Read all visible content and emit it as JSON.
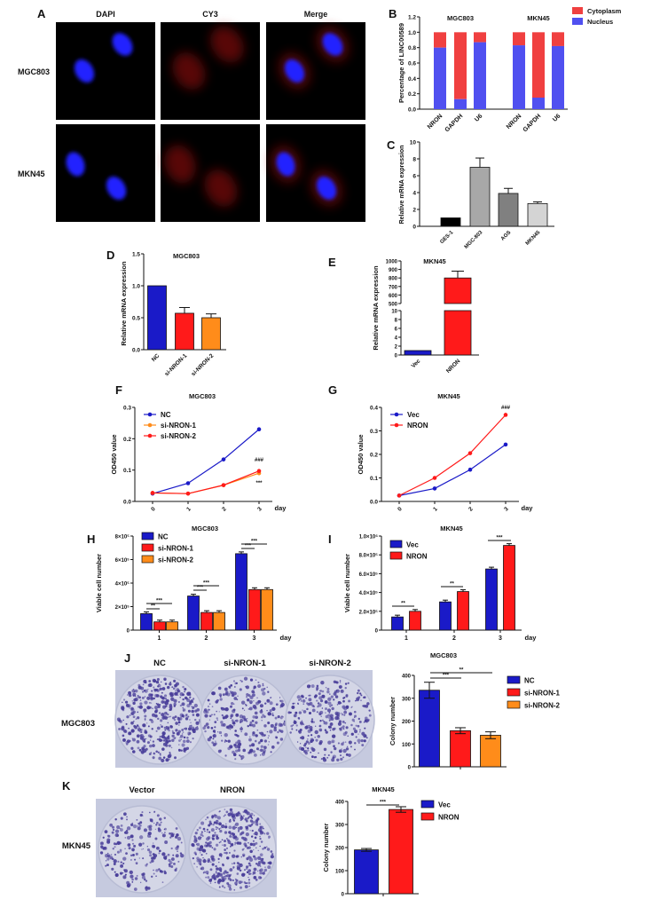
{
  "panel_labels": [
    "A",
    "B",
    "C",
    "D",
    "E",
    "F",
    "G",
    "H",
    "I",
    "J",
    "K"
  ],
  "panelA": {
    "columns": [
      "DAPI",
      "CY3",
      "Merge"
    ],
    "rows": [
      "MGC803",
      "MKN45"
    ]
  },
  "colors": {
    "blue": "#1a1ac8",
    "red": "#ff1a1a",
    "orange": "#ff8c1a",
    "nucleus": "#5050f0",
    "cytoplasm": "#f04040",
    "stain": "#4a3f9a"
  },
  "chart_data": [
    {
      "id": "B",
      "type": "bar",
      "stacked": true,
      "groups": [
        "MGC803",
        "MKN45"
      ],
      "categories": [
        "NRON",
        "GAPDH",
        "U6"
      ],
      "series": [
        {
          "name": "Nucleus",
          "values": [
            [
              0.8,
              0.13,
              0.87
            ],
            [
              0.83,
              0.15,
              0.82
            ]
          ]
        },
        {
          "name": "Cytoplasm",
          "values": [
            [
              0.2,
              0.87,
              0.13
            ],
            [
              0.17,
              0.85,
              0.18
            ]
          ]
        }
      ],
      "ylabel": "Percentage of LINC00589",
      "ylim": [
        0,
        1.2
      ],
      "yticks": [
        "0.0",
        "0.2",
        "0.4",
        "0.6",
        "0.8",
        "1.0",
        "1.2"
      ],
      "legend": "top-right"
    },
    {
      "id": "C",
      "type": "bar",
      "categories": [
        "GES-1",
        "MGC-803",
        "AGS",
        "MKN45"
      ],
      "values": [
        1.0,
        7.0,
        3.9,
        2.7
      ],
      "errors": [
        0,
        1.1,
        0.6,
        0.2
      ],
      "colors": [
        "#000000",
        "#a8a8a8",
        "#808080",
        "#d4d4d4"
      ],
      "ylabel": "Relative mRNA expression",
      "ylim": [
        0,
        10
      ],
      "yticks": [
        "0",
        "2",
        "4",
        "6",
        "8",
        "10"
      ]
    },
    {
      "id": "D",
      "type": "bar",
      "title": "MGC803",
      "categories": [
        "NC",
        "si-NRON-1",
        "si-NRON-2"
      ],
      "values": [
        1.0,
        0.57,
        0.5
      ],
      "errors": [
        0,
        0.09,
        0.06
      ],
      "ylabel": "Relative mRNA expression",
      "ylim": [
        0,
        1.5
      ],
      "yticks": [
        "0.0",
        "0.5",
        "1.0",
        "1.5"
      ]
    },
    {
      "id": "E",
      "type": "bar",
      "title": "MKN45",
      "broken_axis": [
        10,
        500
      ],
      "categories": [
        "Vec",
        "NRON"
      ],
      "values": [
        1,
        800
      ],
      "errors": [
        0,
        80
      ],
      "ylabel": "Relative mRNA expression",
      "yticks_low": [
        "0",
        "2",
        "4",
        "6",
        "8",
        "10"
      ],
      "yticks_high": [
        "500",
        "600",
        "700",
        "800",
        "900",
        "1000"
      ]
    },
    {
      "id": "F",
      "type": "line",
      "title": "MGC803",
      "x": [
        0,
        1,
        2,
        3
      ],
      "xlabel": "day",
      "series": [
        {
          "name": "NC",
          "values": [
            0.025,
            0.058,
            0.134,
            0.23
          ]
        },
        {
          "name": "si-NRON-1",
          "values": [
            0.027,
            0.025,
            0.052,
            0.09
          ]
        },
        {
          "name": "si-NRON-2",
          "values": [
            0.027,
            0.025,
            0.052,
            0.097
          ]
        }
      ],
      "annotations": [
        "###",
        "***"
      ],
      "ylabel": "OD450 value",
      "ylim": [
        0,
        0.3
      ],
      "yticks": [
        "0.0",
        "0.1",
        "0.2",
        "0.3"
      ],
      "legend": "top-left"
    },
    {
      "id": "G",
      "type": "line",
      "title": "MKN45",
      "x": [
        0,
        1,
        2,
        3
      ],
      "xlabel": "day",
      "series": [
        {
          "name": "Vec",
          "values": [
            0.025,
            0.055,
            0.135,
            0.242
          ]
        },
        {
          "name": "NRON",
          "values": [
            0.025,
            0.1,
            0.205,
            0.368
          ]
        }
      ],
      "annotations": [
        "###"
      ],
      "ylabel": "OD450 value",
      "ylim": [
        0,
        0.4
      ],
      "yticks": [
        "0.0",
        "0.1",
        "0.2",
        "0.3",
        "0.4"
      ],
      "legend": "top-left"
    },
    {
      "id": "H",
      "type": "bar",
      "title": "MGC803",
      "categories": [
        "1",
        "2",
        "3"
      ],
      "xlabel": "day",
      "series": [
        {
          "name": "NC",
          "values": [
            140000,
            290000,
            650000
          ]
        },
        {
          "name": "si-NRON-1",
          "values": [
            70000,
            150000,
            345000
          ]
        },
        {
          "name": "si-NRON-2",
          "values": [
            70000,
            150000,
            345000
          ]
        }
      ],
      "significance": [
        [
          "**",
          "***"
        ],
        [
          "***",
          "***"
        ],
        [
          "***",
          "***"
        ]
      ],
      "ylabel": "Viable cell number",
      "ylim": [
        0,
        800000
      ],
      "yticks": [
        "0",
        "2×10⁵",
        "4×10⁵",
        "6×10⁵",
        "8×10⁵"
      ],
      "legend": "top-left"
    },
    {
      "id": "I",
      "type": "bar",
      "title": "MKN45",
      "categories": [
        "1",
        "2",
        "3"
      ],
      "xlabel": "day",
      "series": [
        {
          "name": "Vec",
          "values": [
            140000,
            300000,
            650000
          ]
        },
        {
          "name": "NRON",
          "values": [
            200000,
            410000,
            900000
          ]
        }
      ],
      "significance": [
        "**",
        "**",
        "***"
      ],
      "ylabel": "Viable cell number",
      "ylim": [
        0,
        1000000
      ],
      "yticks": [
        "0",
        "2.0×10⁵",
        "4.0×10⁵",
        "6.0×10⁵",
        "8.0×10⁵",
        "1.0×10⁶"
      ],
      "legend": "top-left"
    },
    {
      "id": "J",
      "type": "bar",
      "title": "MGC803",
      "categories": [
        "NC",
        "si-NRON-1",
        "si-NRON-2"
      ],
      "values": [
        335,
        158,
        138
      ],
      "errors": [
        35,
        13,
        15
      ],
      "significance": [
        "***",
        "**"
      ],
      "ylabel": "Colony number",
      "ylim": [
        0,
        400
      ],
      "yticks": [
        "0",
        "100",
        "200",
        "300",
        "400"
      ],
      "legend": "right"
    },
    {
      "id": "K",
      "type": "bar",
      "title": "MKN45",
      "categories": [
        "Vec",
        "NRON"
      ],
      "values": [
        190,
        365
      ],
      "errors": [
        6,
        12
      ],
      "significance": [
        "***"
      ],
      "ylabel": "Colony number",
      "ylim": [
        0,
        400
      ],
      "yticks": [
        "0",
        "100",
        "200",
        "300",
        "400"
      ],
      "legend": "right"
    }
  ],
  "panelJ": {
    "columns": [
      "NC",
      "si-NRON-1",
      "si-NRON-2"
    ],
    "row": "MGC803"
  },
  "panelK": {
    "columns": [
      "Vector",
      "NRON"
    ],
    "row": "MKN45"
  }
}
